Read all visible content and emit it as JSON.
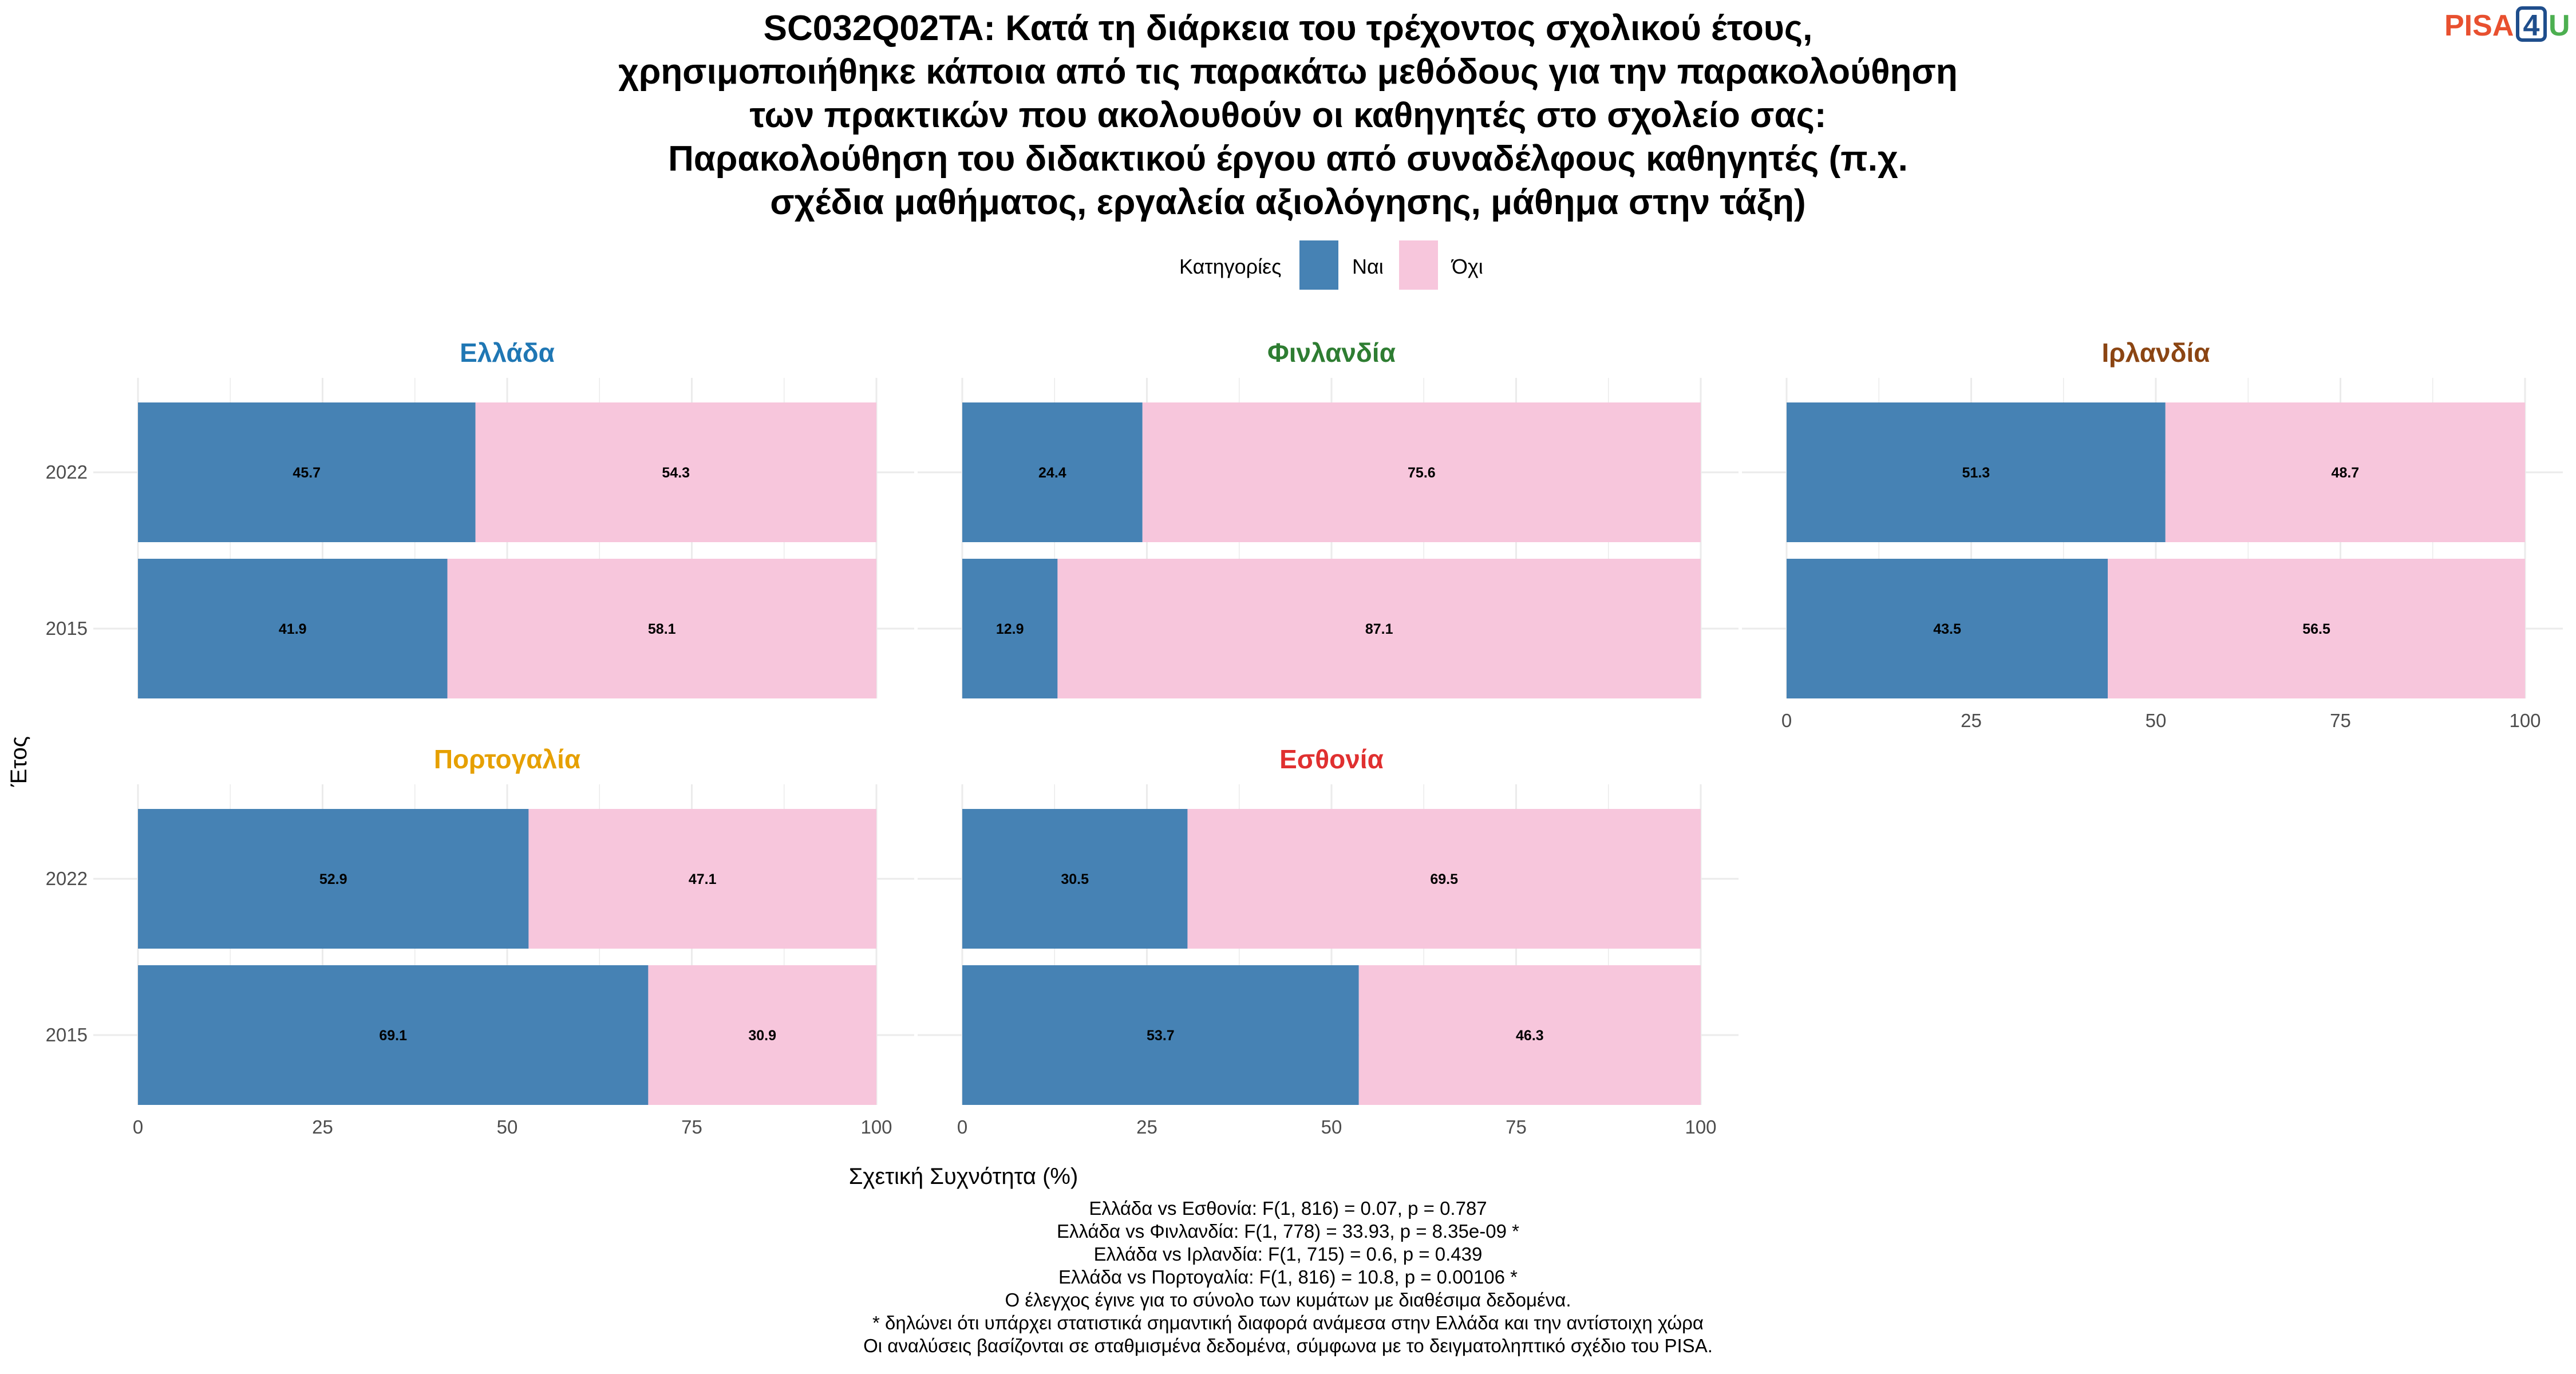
{
  "title_lines": [
    "SC032Q02TA: Κατά τη διάρκεια του τρέχοντος σχολικού έτους,",
    "χρησιμοποιήθηκε κάποια από τις παρακάτω μεθόδους για την παρακολούθηση",
    "των πρακτικών που ακολουθούν οι καθηγητές στο σχολείο σας:",
    "Παρακολούθηση του διδακτικού έργου από συναδέλφους καθηγητές (π.χ.",
    "σχέδια μαθήματος, εργαλεία αξιολόγησης, μάθημα στην τάξη)"
  ],
  "logo": {
    "part1": "PISA",
    "digit": "4",
    "part2": "U",
    "color_part1": "#E8502F",
    "color_digit": "#1F4E8C",
    "color_part2": "#4CAF50"
  },
  "legend": {
    "title": "Κατηγορίες",
    "items": [
      {
        "label": "Ναι",
        "color": "#4682B4"
      },
      {
        "label": "Όχι",
        "color": "#F7C6DC"
      }
    ]
  },
  "chart_data": {
    "type": "bar",
    "orientation": "horizontal",
    "stacked": true,
    "ylabel": "Έτος",
    "xlabel": "Σχετική Συχνότητα (%)",
    "xlim": [
      0,
      100
    ],
    "xticks": [
      "0",
      "25",
      "50",
      "75",
      "100"
    ],
    "categories": [
      "2022",
      "2015"
    ],
    "series_names": [
      "Ναι",
      "Όχι"
    ],
    "series_colors": [
      "#4682B4",
      "#F7C6DC"
    ],
    "grid": true,
    "legend_position": "top",
    "facets": [
      {
        "name": "Ελλάδα",
        "color": "#1F77B4",
        "values": {
          "2022": [
            45.7,
            54.3
          ],
          "2015": [
            41.9,
            58.1
          ]
        },
        "labels": {
          "2022": [
            "45.7",
            "54.3"
          ],
          "2015": [
            "41.9",
            "58.1"
          ]
        }
      },
      {
        "name": "Φινλανδία",
        "color": "#2E7D32",
        "values": {
          "2022": [
            24.4,
            75.6
          ],
          "2015": [
            12.9,
            87.1
          ]
        },
        "labels": {
          "2022": [
            "24.4",
            "75.6"
          ],
          "2015": [
            "12.9",
            "87.1"
          ]
        }
      },
      {
        "name": "Ιρλανδία",
        "color": "#8B4513",
        "values": {
          "2022": [
            51.3,
            48.7
          ],
          "2015": [
            43.5,
            56.5
          ]
        },
        "labels": {
          "2022": [
            "51.3",
            "48.7"
          ],
          "2015": [
            "43.5",
            "56.5"
          ]
        }
      },
      {
        "name": "Πορτογαλία",
        "color": "#E6A000",
        "values": {
          "2022": [
            52.9,
            47.1
          ],
          "2015": [
            69.1,
            30.9
          ]
        },
        "labels": {
          "2022": [
            "52.9",
            "47.1"
          ],
          "2015": [
            "69.1",
            "30.9"
          ]
        }
      },
      {
        "name": "Εσθονία",
        "color": "#E03030",
        "values": {
          "2022": [
            30.5,
            69.5
          ],
          "2015": [
            53.7,
            46.3
          ]
        },
        "labels": {
          "2022": [
            "30.5",
            "69.5"
          ],
          "2015": [
            "53.7",
            "46.3"
          ]
        }
      }
    ]
  },
  "notes": [
    "Ελλάδα vs Εσθονία: F(1, 816) = 0.07, p = 0.787",
    "Ελλάδα vs Φινλανδία: F(1, 778) = 33.93, p = 8.35e-09 *",
    "Ελλάδα vs Ιρλανδία: F(1, 715) = 0.6, p = 0.439",
    "Ελλάδα vs Πορτογαλία: F(1, 816) = 10.8, p = 0.00106 *",
    "Ο έλεγχος έγινε για το σύνολο των κυμάτων με διαθέσιμα δεδομένα.",
    "* δηλώνει ότι υπάρχει στατιστικά σημαντική διαφορά ανάμεσα στην Ελλάδα και την αντίστοιχη χώρα",
    "Οι αναλύσεις βασίζονται σε σταθμισμένα δεδομένα, σύμφωνα με το δειγματοληπτικό σχέδιο του PISA."
  ]
}
